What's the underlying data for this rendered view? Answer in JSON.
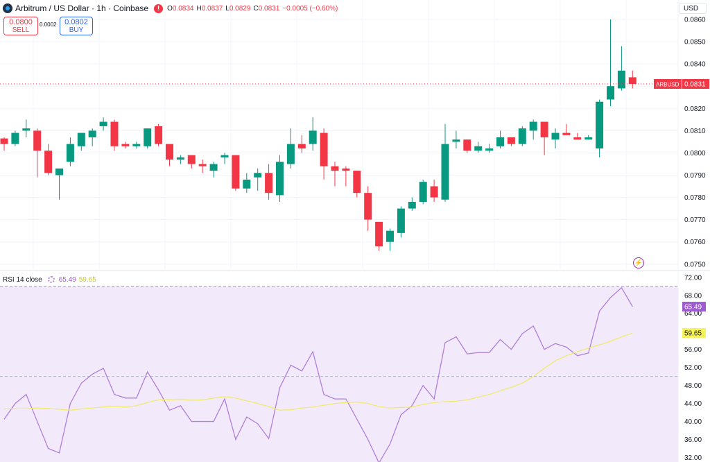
{
  "header": {
    "title": "Arbitrum / US Dollar · 1h · Coinbase",
    "open_label": "O",
    "open": "0.0834",
    "high_label": "H",
    "high": "0.0837",
    "low_label": "L",
    "low": "0.0829",
    "close_label": "C",
    "close": "0.0831",
    "change": "−0.0005 (−0.60%)",
    "warning_icon": "exclamation-icon",
    "coin_icon": "arbitrum-logo"
  },
  "trade": {
    "sell_price": "0.0800",
    "sell_label": "SELL",
    "spread": "0.0002",
    "buy_price": "0.0802",
    "buy_label": "BUY"
  },
  "currency": "USD",
  "rsi_header": {
    "label": "RSI 14 close",
    "rsi_value": "65.49",
    "ma_value": "59.65",
    "icon": "settings-dots-icon"
  },
  "colors": {
    "up": "#089981",
    "down": "#f23645",
    "rsi": "#b07fd8",
    "rsi_ma": "#f0ea70",
    "rsi_band": "#f2eafb"
  },
  "chart_data": [
    {
      "type": "candlestick",
      "symbol": "ARBUSD",
      "price_axis": {
        "ticks": [
          "0.0860",
          "0.0850",
          "0.0840",
          "0.0830",
          "0.0820",
          "0.0810",
          "0.0800",
          "0.0790",
          "0.0780",
          "0.0770",
          "0.0760",
          "0.0750"
        ],
        "range": [
          0.07465,
          0.08625
        ]
      },
      "last_price": {
        "label": "ARBUSD",
        "value": "0.0831"
      },
      "candles": [
        [
          0.08065,
          0.0807,
          0.0801,
          0.0804
        ],
        [
          0.0804,
          0.081,
          0.0803,
          0.0809
        ],
        [
          0.081,
          0.0815,
          0.0807,
          0.0811
        ],
        [
          0.081,
          0.0811,
          0.0789,
          0.0801
        ],
        [
          0.0801,
          0.0804,
          0.079,
          0.0791
        ],
        [
          0.079,
          0.0793,
          0.0779,
          0.0793
        ],
        [
          0.0796,
          0.0807,
          0.0794,
          0.0804
        ],
        [
          0.0803,
          0.0809,
          0.0801,
          0.0809
        ],
        [
          0.0807,
          0.0811,
          0.0803,
          0.081
        ],
        [
          0.0812,
          0.0816,
          0.081,
          0.0814
        ],
        [
          0.0814,
          0.0815,
          0.0801,
          0.0803
        ],
        [
          0.0804,
          0.0805,
          0.0802,
          0.0803
        ],
        [
          0.0803,
          0.0805,
          0.0802,
          0.0804
        ],
        [
          0.0803,
          0.0811,
          0.0802,
          0.0811
        ],
        [
          0.0812,
          0.0813,
          0.0803,
          0.0804
        ],
        [
          0.0804,
          0.0804,
          0.0794,
          0.0797
        ],
        [
          0.0797,
          0.0799,
          0.0795,
          0.0798
        ],
        [
          0.0799,
          0.0799,
          0.0793,
          0.0795
        ],
        [
          0.0795,
          0.0797,
          0.0791,
          0.0794
        ],
        [
          0.0792,
          0.0796,
          0.0789,
          0.0795
        ],
        [
          0.0798,
          0.08,
          0.0795,
          0.0799
        ],
        [
          0.0799,
          0.0799,
          0.0783,
          0.0784
        ],
        [
          0.0784,
          0.0791,
          0.0782,
          0.0788
        ],
        [
          0.0789,
          0.0793,
          0.0783,
          0.0791
        ],
        [
          0.0791,
          0.0795,
          0.0779,
          0.0782
        ],
        [
          0.0781,
          0.0799,
          0.0778,
          0.0796
        ],
        [
          0.0795,
          0.0811,
          0.0793,
          0.0804
        ],
        [
          0.0804,
          0.0808,
          0.08,
          0.0802
        ],
        [
          0.0804,
          0.0816,
          0.0801,
          0.081
        ],
        [
          0.0809,
          0.0811,
          0.0788,
          0.0794
        ],
        [
          0.0794,
          0.0796,
          0.0785,
          0.0792
        ],
        [
          0.0793,
          0.0794,
          0.0785,
          0.0792
        ],
        [
          0.0792,
          0.0792,
          0.078,
          0.0782
        ],
        [
          0.0782,
          0.0785,
          0.0765,
          0.077
        ],
        [
          0.0769,
          0.0769,
          0.0756,
          0.0758
        ],
        [
          0.076,
          0.0766,
          0.0756,
          0.0765
        ],
        [
          0.0764,
          0.0776,
          0.0762,
          0.0775
        ],
        [
          0.0775,
          0.078,
          0.0774,
          0.0778
        ],
        [
          0.0778,
          0.0788,
          0.0777,
          0.0787
        ],
        [
          0.0785,
          0.0788,
          0.0778,
          0.078
        ],
        [
          0.0779,
          0.0813,
          0.0778,
          0.0804
        ],
        [
          0.0805,
          0.081,
          0.0802,
          0.0806
        ],
        [
          0.0806,
          0.0806,
          0.08,
          0.0801
        ],
        [
          0.0801,
          0.0805,
          0.08,
          0.0803
        ],
        [
          0.0801,
          0.0804,
          0.08,
          0.0802
        ],
        [
          0.0803,
          0.081,
          0.0802,
          0.0807
        ],
        [
          0.0807,
          0.0807,
          0.0803,
          0.0804
        ],
        [
          0.0804,
          0.0812,
          0.0803,
          0.0811
        ],
        [
          0.081,
          0.0815,
          0.0806,
          0.0814
        ],
        [
          0.0814,
          0.0814,
          0.0799,
          0.0807
        ],
        [
          0.0806,
          0.0811,
          0.0802,
          0.0809
        ],
        [
          0.0809,
          0.0813,
          0.0808,
          0.0808
        ],
        [
          0.0807,
          0.0809,
          0.0806,
          0.0806
        ],
        [
          0.0806,
          0.0808,
          0.0806,
          0.0807
        ],
        [
          0.0802,
          0.0824,
          0.0798,
          0.0823
        ],
        [
          0.0824,
          0.086,
          0.0821,
          0.083
        ],
        [
          0.0829,
          0.0848,
          0.0828,
          0.0837
        ],
        [
          0.0834,
          0.0837,
          0.0829,
          0.0831
        ]
      ]
    },
    {
      "type": "line",
      "title": "RSI 14 close",
      "y_axis": {
        "ticks": [
          "72.00",
          "68.00",
          "64.00",
          "60.00",
          "56.00",
          "52.00",
          "48.00",
          "44.00",
          "40.00",
          "36.00",
          "32.00"
        ],
        "range": [
          31.0,
          73.2
        ]
      },
      "band": [
        30,
        70
      ],
      "midline": 50,
      "series": [
        {
          "name": "RSI",
          "values": [
            40.5,
            44.0,
            46.0,
            40.0,
            34.0,
            33.0,
            44.0,
            48.5,
            50.5,
            51.8,
            46.0,
            45.2,
            45.2,
            51.0,
            47.0,
            42.5,
            43.5,
            40.0,
            40.0,
            40.0,
            45.0,
            36.0,
            41.0,
            39.5,
            36.2,
            47.5,
            52.5,
            51.2,
            55.5,
            46.0,
            45.0,
            45.0,
            40.5,
            36.0,
            30.8,
            35.0,
            41.5,
            43.5,
            48.0,
            45.0,
            57.5,
            58.8,
            55.0,
            55.3,
            55.3,
            58.2,
            56.0,
            59.5,
            61.2,
            56.0,
            57.3,
            56.5,
            54.6,
            55.2,
            64.5,
            67.5,
            69.7,
            65.5
          ]
        },
        {
          "name": "RSI-based MA",
          "values": [
            42.8,
            42.8,
            42.8,
            43.0,
            42.9,
            42.7,
            42.5,
            42.8,
            43.0,
            43.2,
            43.3,
            43.2,
            43.5,
            44.2,
            44.8,
            44.8,
            44.9,
            44.7,
            44.8,
            45.2,
            45.5,
            45.2,
            44.6,
            44.0,
            43.3,
            42.5,
            42.6,
            43.0,
            43.2,
            43.6,
            44.0,
            44.2,
            44.3,
            44.0,
            43.3,
            43.0,
            43.1,
            43.2,
            43.8,
            44.2,
            44.4,
            44.5,
            44.8,
            45.4,
            46.0,
            46.8,
            47.6,
            48.5,
            50.0,
            51.8,
            53.5,
            54.6,
            55.5,
            56.3,
            57.0,
            57.8,
            58.8,
            59.6
          ]
        }
      ],
      "last_values": {
        "rsi": "65.49",
        "ma": "59.65"
      }
    }
  ]
}
